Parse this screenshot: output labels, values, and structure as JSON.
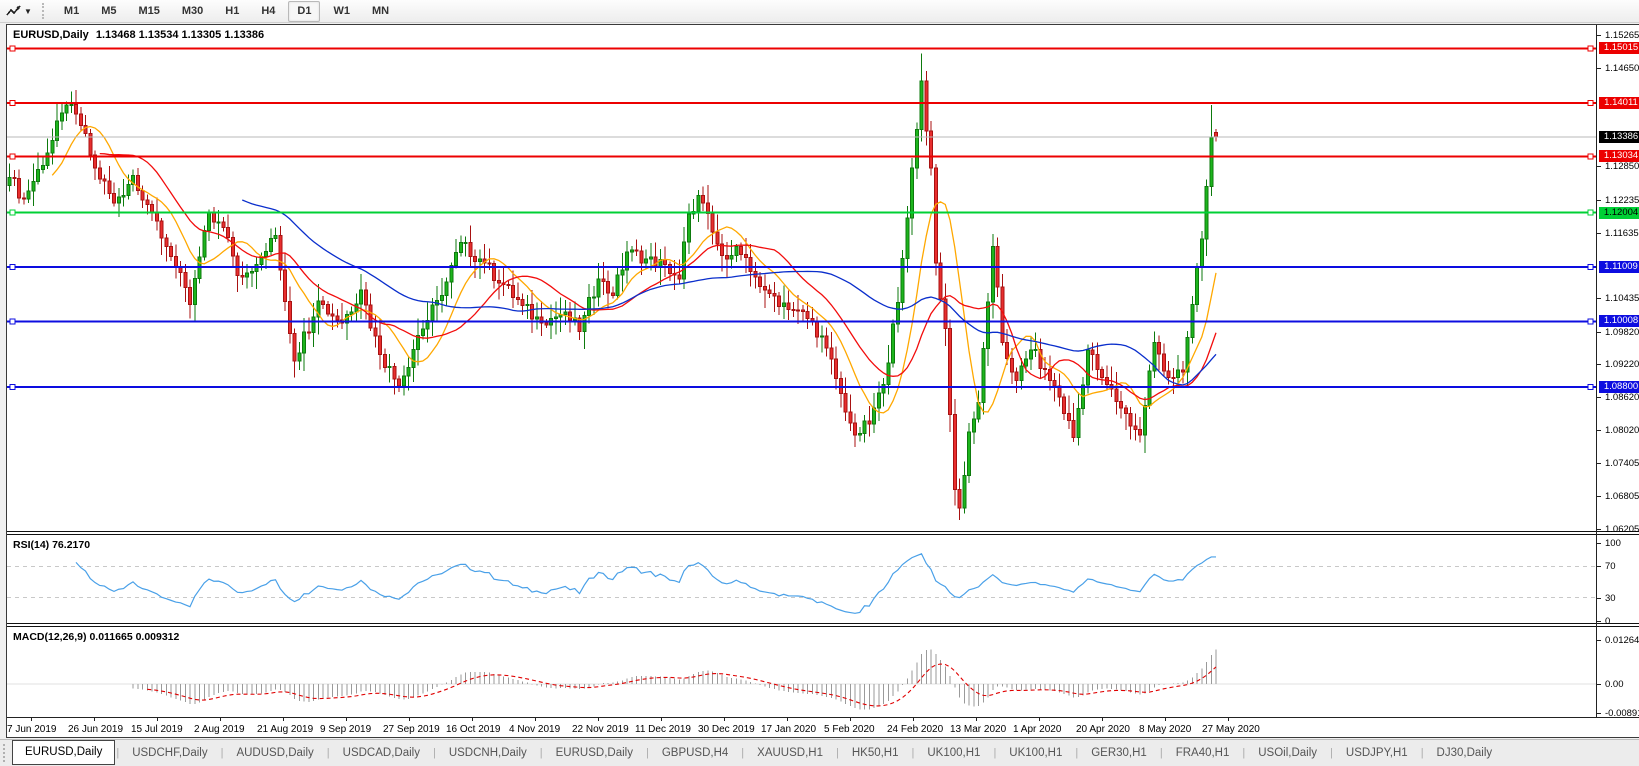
{
  "toolbar": {
    "chart_mode_icon": "indicator-arrows-icon",
    "timeframes": [
      "M1",
      "M5",
      "M15",
      "M30",
      "H1",
      "H4",
      "D1",
      "W1",
      "MN"
    ],
    "selected_timeframe": "D1"
  },
  "chart": {
    "symbol_title": "EURUSD,Daily",
    "ohlc_text": "1.13468 1.13534 1.13305 1.13386"
  },
  "rsi_panel": {
    "label": "RSI(14) 76.2170",
    "axis_ticks": [
      "100",
      "70",
      "30",
      "0"
    ]
  },
  "macd_panel": {
    "label": "MACD(12,26,9) 0.011665 0.009312",
    "axis_ticks": [
      "0.012645",
      "0.00",
      "-0.00891"
    ]
  },
  "chart_data": {
    "type": "candlestick",
    "symbol": "EURUSD",
    "timeframe": "Daily",
    "current_ohlc": {
      "open": 1.13468,
      "high": 1.13534,
      "low": 1.13305,
      "close": 1.13386
    },
    "y_range": [
      1.0604,
      1.1539
    ],
    "bars_visible": 255,
    "y_axis_ticks": [
      1.15265,
      1.1465,
      1.1285,
      1.12235,
      1.11635,
      1.10435,
      1.0982,
      1.0922,
      1.0862,
      1.0802,
      1.07405,
      1.06805,
      1.06205
    ],
    "x_axis_dates": [
      "7 Jun 2019",
      "26 Jun 2019",
      "15 Jul 2019",
      "2 Aug 2019",
      "21 Aug 2019",
      "9 Sep 2019",
      "27 Sep 2019",
      "16 Oct 2019",
      "4 Nov 2019",
      "22 Nov 2019",
      "11 Dec 2019",
      "30 Dec 2019",
      "17 Jan 2020",
      "5 Feb 2020",
      "24 Feb 2020",
      "13 Mar 2020",
      "1 Apr 2020",
      "20 Apr 2020",
      "8 May 2020",
      "27 May 2020"
    ],
    "price_path": [
      [
        0,
        1.1265
      ],
      [
        3,
        1.1225
      ],
      [
        8,
        1.131
      ],
      [
        12,
        1.1398
      ],
      [
        15,
        1.136
      ],
      [
        18,
        1.1282
      ],
      [
        22,
        1.1218
      ],
      [
        26,
        1.1268
      ],
      [
        30,
        1.12
      ],
      [
        34,
        1.112
      ],
      [
        38,
        1.1032
      ],
      [
        42,
        1.12
      ],
      [
        46,
        1.1155
      ],
      [
        48,
        1.1085
      ],
      [
        52,
        1.1105
      ],
      [
        56,
        1.1158
      ],
      [
        60,
        1.0928
      ],
      [
        65,
        1.1038
      ],
      [
        70,
        1.0998
      ],
      [
        74,
        1.1058
      ],
      [
        78,
        1.094
      ],
      [
        82,
        1.0882
      ],
      [
        86,
        1.0975
      ],
      [
        91,
        1.1048
      ],
      [
        95,
        1.1145
      ],
      [
        100,
        1.1108
      ],
      [
        104,
        1.1068
      ],
      [
        108,
        1.103
      ],
      [
        112,
        1.0998
      ],
      [
        117,
        1.1018
      ],
      [
        120,
        1.0982
      ],
      [
        124,
        1.1078
      ],
      [
        127,
        1.1048
      ],
      [
        130,
        1.1128
      ],
      [
        134,
        1.1115
      ],
      [
        138,
        1.1105
      ],
      [
        141,
        1.1078
      ],
      [
        143,
        1.1198
      ],
      [
        145,
        1.1232
      ],
      [
        148,
        1.1165
      ],
      [
        150,
        1.1122
      ],
      [
        153,
        1.1138
      ],
      [
        156,
        1.1092
      ],
      [
        160,
        1.1052
      ],
      [
        165,
        1.1022
      ],
      [
        169,
        1.1
      ],
      [
        172,
        1.0952
      ],
      [
        175,
        1.0868
      ],
      [
        178,
        1.0792
      ],
      [
        181,
        1.0812
      ],
      [
        184,
        1.0885
      ],
      [
        187,
        1.1035
      ],
      [
        190,
        1.1282
      ],
      [
        192,
        1.1442
      ],
      [
        194,
        1.1282
      ],
      [
        195,
        1.1108
      ],
      [
        197,
        1.0988
      ],
      [
        199,
        1.0692
      ],
      [
        200,
        1.0658
      ],
      [
        202,
        1.0798
      ],
      [
        204,
        1.0852
      ],
      [
        207,
        1.1138
      ],
      [
        209,
        1.0962
      ],
      [
        212,
        1.0892
      ],
      [
        215,
        1.0948
      ],
      [
        218,
        1.0912
      ],
      [
        221,
        1.0862
      ],
      [
        224,
        1.0788
      ],
      [
        227,
        1.0948
      ],
      [
        230,
        1.0898
      ],
      [
        234,
        1.0842
      ],
      [
        238,
        1.0792
      ],
      [
        241,
        1.0962
      ],
      [
        244,
        1.0898
      ],
      [
        247,
        1.0908
      ],
      [
        249,
        1.1032
      ],
      [
        251,
        1.1152
      ],
      [
        252,
        1.1248
      ],
      [
        253,
        1.1338
      ],
      [
        254,
        1.13386
      ]
    ],
    "anchors": {
      "12": {
        "h": 1.1404
      },
      "192": {
        "h": 1.1492
      },
      "200": {
        "l": 1.0636
      },
      "253": {
        "h": 1.1398
      },
      "254": {
        "o": 1.13468,
        "h": 1.13534,
        "l": 1.13305,
        "c": 1.13386
      }
    },
    "candle_colors": {
      "up_fill": "#1db51d",
      "up_stroke": "#0d7a0d",
      "down_fill": "#e82e2e",
      "down_stroke": "#a81212"
    },
    "horizontal_lines": [
      {
        "price": 1.15015,
        "label": "1.15015",
        "color": "#ec0000",
        "text": "#fff"
      },
      {
        "price": 1.14011,
        "label": "1.14011",
        "color": "#ec0000",
        "text": "#fff"
      },
      {
        "price": 1.13034,
        "label": "1.13034",
        "color": "#ec0000",
        "text": "#fff"
      },
      {
        "price": 1.12004,
        "label": "1.12004",
        "color": "#00d035",
        "text": "#000"
      },
      {
        "price": 1.11009,
        "label": "1.11009",
        "color": "#0d0de0",
        "text": "#fff"
      },
      {
        "price": 1.10008,
        "label": "1.10008",
        "color": "#0d0de0",
        "text": "#fff"
      },
      {
        "price": 1.088,
        "label": "1.08800",
        "color": "#0d0de0",
        "text": "#fff"
      }
    ],
    "current_price_line": {
      "price": 1.13386,
      "label": "1.13386",
      "line_color": "#b8b8b8",
      "label_bg": "#000",
      "text": "#fff"
    },
    "moving_averages": [
      {
        "period": 10,
        "color": "#ffa800"
      },
      {
        "period": 20,
        "color": "#f20d0d"
      },
      {
        "period": 50,
        "color": "#0a2ecc"
      }
    ],
    "rsi": {
      "period": 14,
      "current": 76.217,
      "levels": [
        70,
        30
      ],
      "axis_ticks": [
        100,
        70,
        30,
        0
      ],
      "line_color": "#49a0e8",
      "level_color": "#c8c8c8"
    },
    "macd": {
      "fast": 12,
      "slow": 26,
      "signal": 9,
      "current_macd": 0.011665,
      "current_signal": 0.009312,
      "axis_ticks": [
        0.012645,
        0.0,
        -0.00891
      ],
      "histogram_color": "#9a9a9a",
      "signal_color": "#e00000"
    }
  },
  "tabs": [
    "EURUSD,Daily",
    "USDCHF,Daily",
    "AUDUSD,Daily",
    "USDCAD,Daily",
    "USDCNH,Daily",
    "EURUSD,Daily",
    "GBPUSD,H4",
    "XAUUSD,H1",
    "HK50,H1",
    "UK100,H1",
    "UK100,H1",
    "GER30,H1",
    "FRA40,H1",
    "USOil,Daily",
    "USDJPY,H1",
    "DJ30,Daily"
  ],
  "selected_tab_index": 0
}
